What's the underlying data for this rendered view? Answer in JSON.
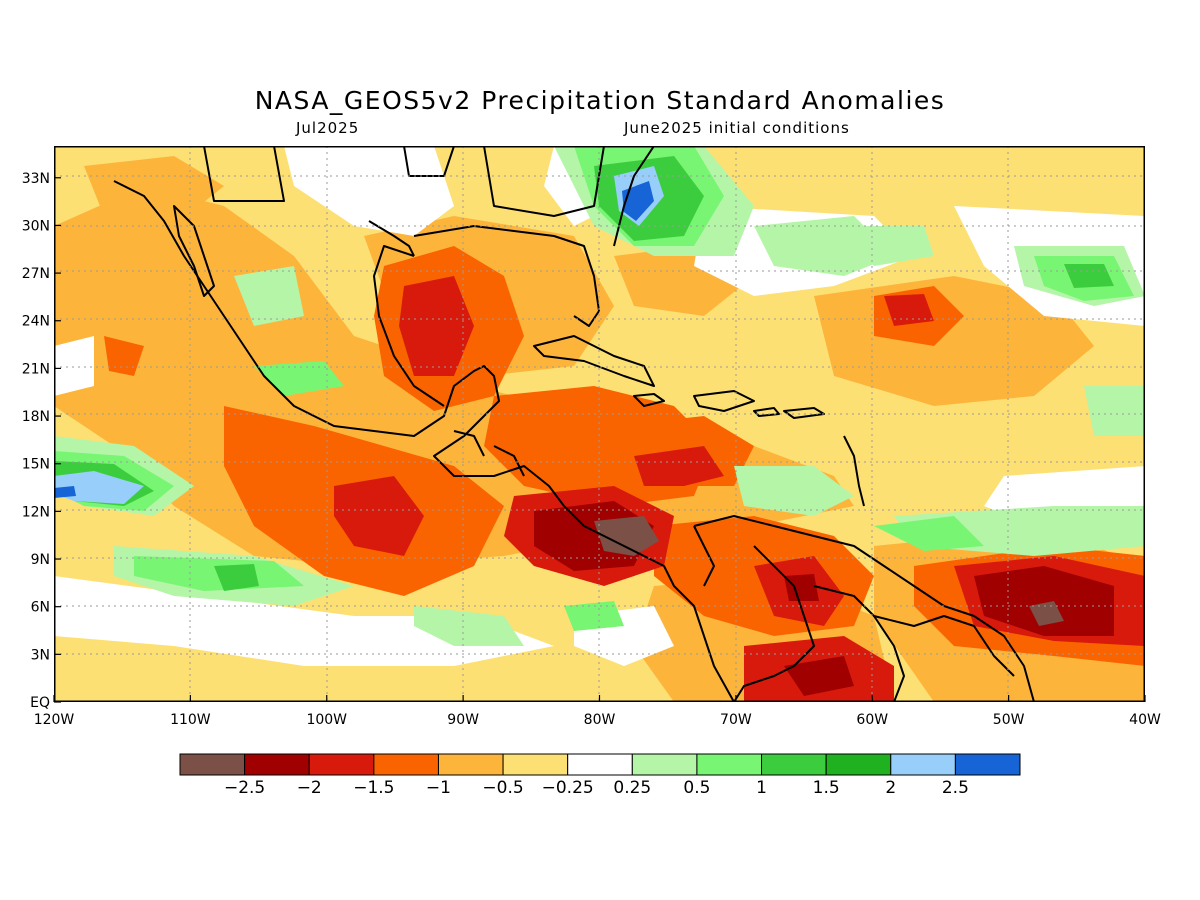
{
  "title": "NASA_GEOS5v2 Precipitation Standard Anomalies",
  "subtitle_left": "Jul2025",
  "subtitle_right": "June2025 initial conditions",
  "lat_labels": [
    "33N",
    "30N",
    "27N",
    "24N",
    "21N",
    "18N",
    "15N",
    "12N",
    "9N",
    "6N",
    "3N",
    "EQ"
  ],
  "lon_labels": [
    "120W",
    "110W",
    "100W",
    "90W",
    "80W",
    "70W",
    "60W",
    "50W",
    "40W"
  ],
  "colorbar": {
    "colors": [
      "#7a5047",
      "#a00000",
      "#d81a0c",
      "#fa6400",
      "#fdb43b",
      "#fde074",
      "#ffffff",
      "#b4f5a8",
      "#78f573",
      "#3ccd3e",
      "#1fb11f",
      "#97cffa",
      "#1664d6"
    ],
    "labels": [
      "-2.5",
      "-2",
      "-1.5",
      "-1",
      "-0.5",
      "-0.25",
      "0.25",
      "0.5",
      "1",
      "1.5",
      "2",
      "2.5"
    ]
  }
}
